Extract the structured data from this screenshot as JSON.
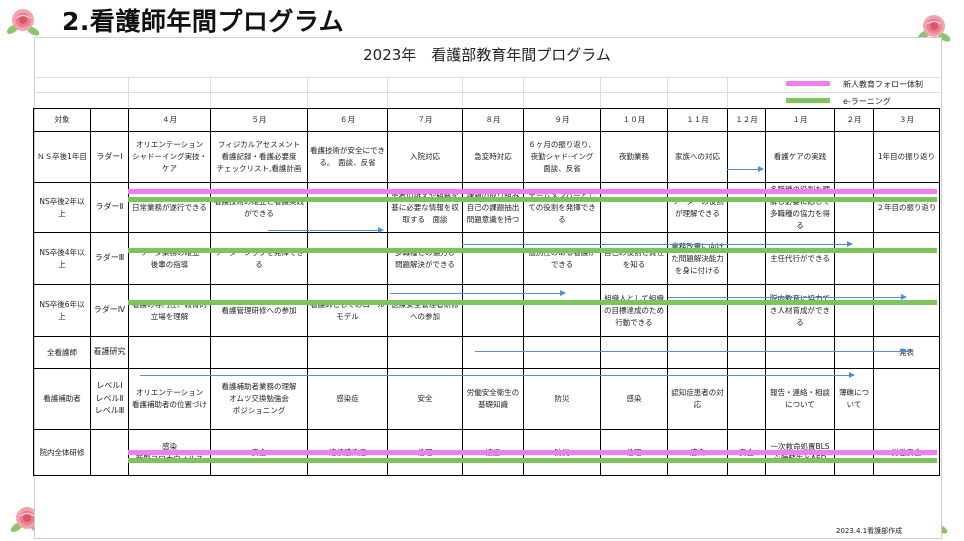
{
  "page_title": "2.看護師年間プログラム",
  "document_title": "2023年　看護部教育年間プログラム",
  "legend": [
    {
      "label": "新人教育フォロー体制",
      "color": "#f27cf2"
    },
    {
      "label": "e-ラーニング",
      "color": "#7dc45b"
    }
  ],
  "header": [
    "対象",
    "",
    "４月",
    "５月",
    "６月",
    "７月",
    "８月",
    "９月",
    "１０月",
    "１１月",
    "１２月",
    "１月",
    "２月",
    "３月"
  ],
  "rows": [
    {
      "target": "ＮＳ卒後1年目",
      "level": "ラダーⅠ",
      "cells": [
        "オリエンテーション\nシャドーイング実技・ケア",
        "フィジカルアセスメント\n看護記録・看護必要度\nチェックリスト,看護計画",
        "看護技術が安全にできる。　面談、反省",
        "入院対応",
        "急変時対応",
        "６ヶ月の振り返り、\n夜勤シャド-イング\n面談、反省",
        "夜勤業務",
        "家族への対応",
        "",
        "看護ケアの実践",
        "",
        "1年目の振り返り"
      ]
    },
    {
      "target": "NS卒後2年以上",
      "level": "ラダーⅡ",
      "cells": [
        "日常業務が遂行できる",
        "看護技術の確立と看護実践ができる",
        "",
        "患者の訴えや観察を基に必要な情報を収取する　面談",
        "課題の取り組み自己の課題抽出問題意識を持つ",
        "チームメンバーとしての役割を発揮できる",
        "",
        "リーダーの役割が理解できる",
        "",
        "多職種の役割を理解し必要に応じて多職種の協力を得る",
        "",
        "２年目の振り返り"
      ]
    },
    {
      "target": "NS卒後4年以上",
      "level": "ラダーⅢ",
      "cells": [
        "リーダ業務の確立\n後輩の指導",
        "リーダーシップを発揮できる",
        "",
        "多職種との協力し\n問題解決ができる",
        "",
        "個別性のある看護ができる",
        "自己の役割と責任を知る",
        "業務改善に向けた問題解決能力を身に付ける",
        "",
        "主任代行ができる",
        "",
        ""
      ]
    },
    {
      "target": "NS卒後6年以上",
      "level": "ラダーⅣ",
      "cells": [
        "看護の専門性、教育的立場を理解",
        "看護管理研修への参加",
        "看護師としてのロールモデル",
        "医療安全管理者研修への参加",
        "",
        "",
        "組織人として組織の目標達成のため行動できる",
        "",
        "",
        "院内教育に協力でき人材育成ができる",
        "",
        ""
      ]
    },
    {
      "target": "全看護師",
      "level": "看護研究",
      "cells": [
        "",
        "",
        "",
        "",
        "",
        "",
        "",
        "",
        "",
        "",
        "",
        "発表"
      ]
    },
    {
      "target": "看護補助者",
      "level": "レベルⅠ\nレベルⅡ\nレベルⅢ",
      "cells": [
        "オリエンテーション\n看護補助者の位置づけ",
        "看護補助者業務の理解\nオムツ交換勉強会\nポジショニング",
        "感染症",
        "安全",
        "労働安全衛生の基礎知識",
        "防災",
        "感染",
        "認知症患者の対応",
        "",
        "報告・連絡・相談について",
        "薄礁について",
        ""
      ]
    },
    {
      "target": "院内全体研修",
      "level": "",
      "cells": [
        "感染\n新型コロナウィルス",
        "安全",
        "結核感染症",
        "倫理",
        "接遇",
        "防災",
        "倫理",
        "感染",
        "安全",
        "一次救命処置BLS\n心肺蘇生とAED",
        "",
        "労働安全"
      ]
    }
  ],
  "footer": "2023.4.1看護部作成"
}
